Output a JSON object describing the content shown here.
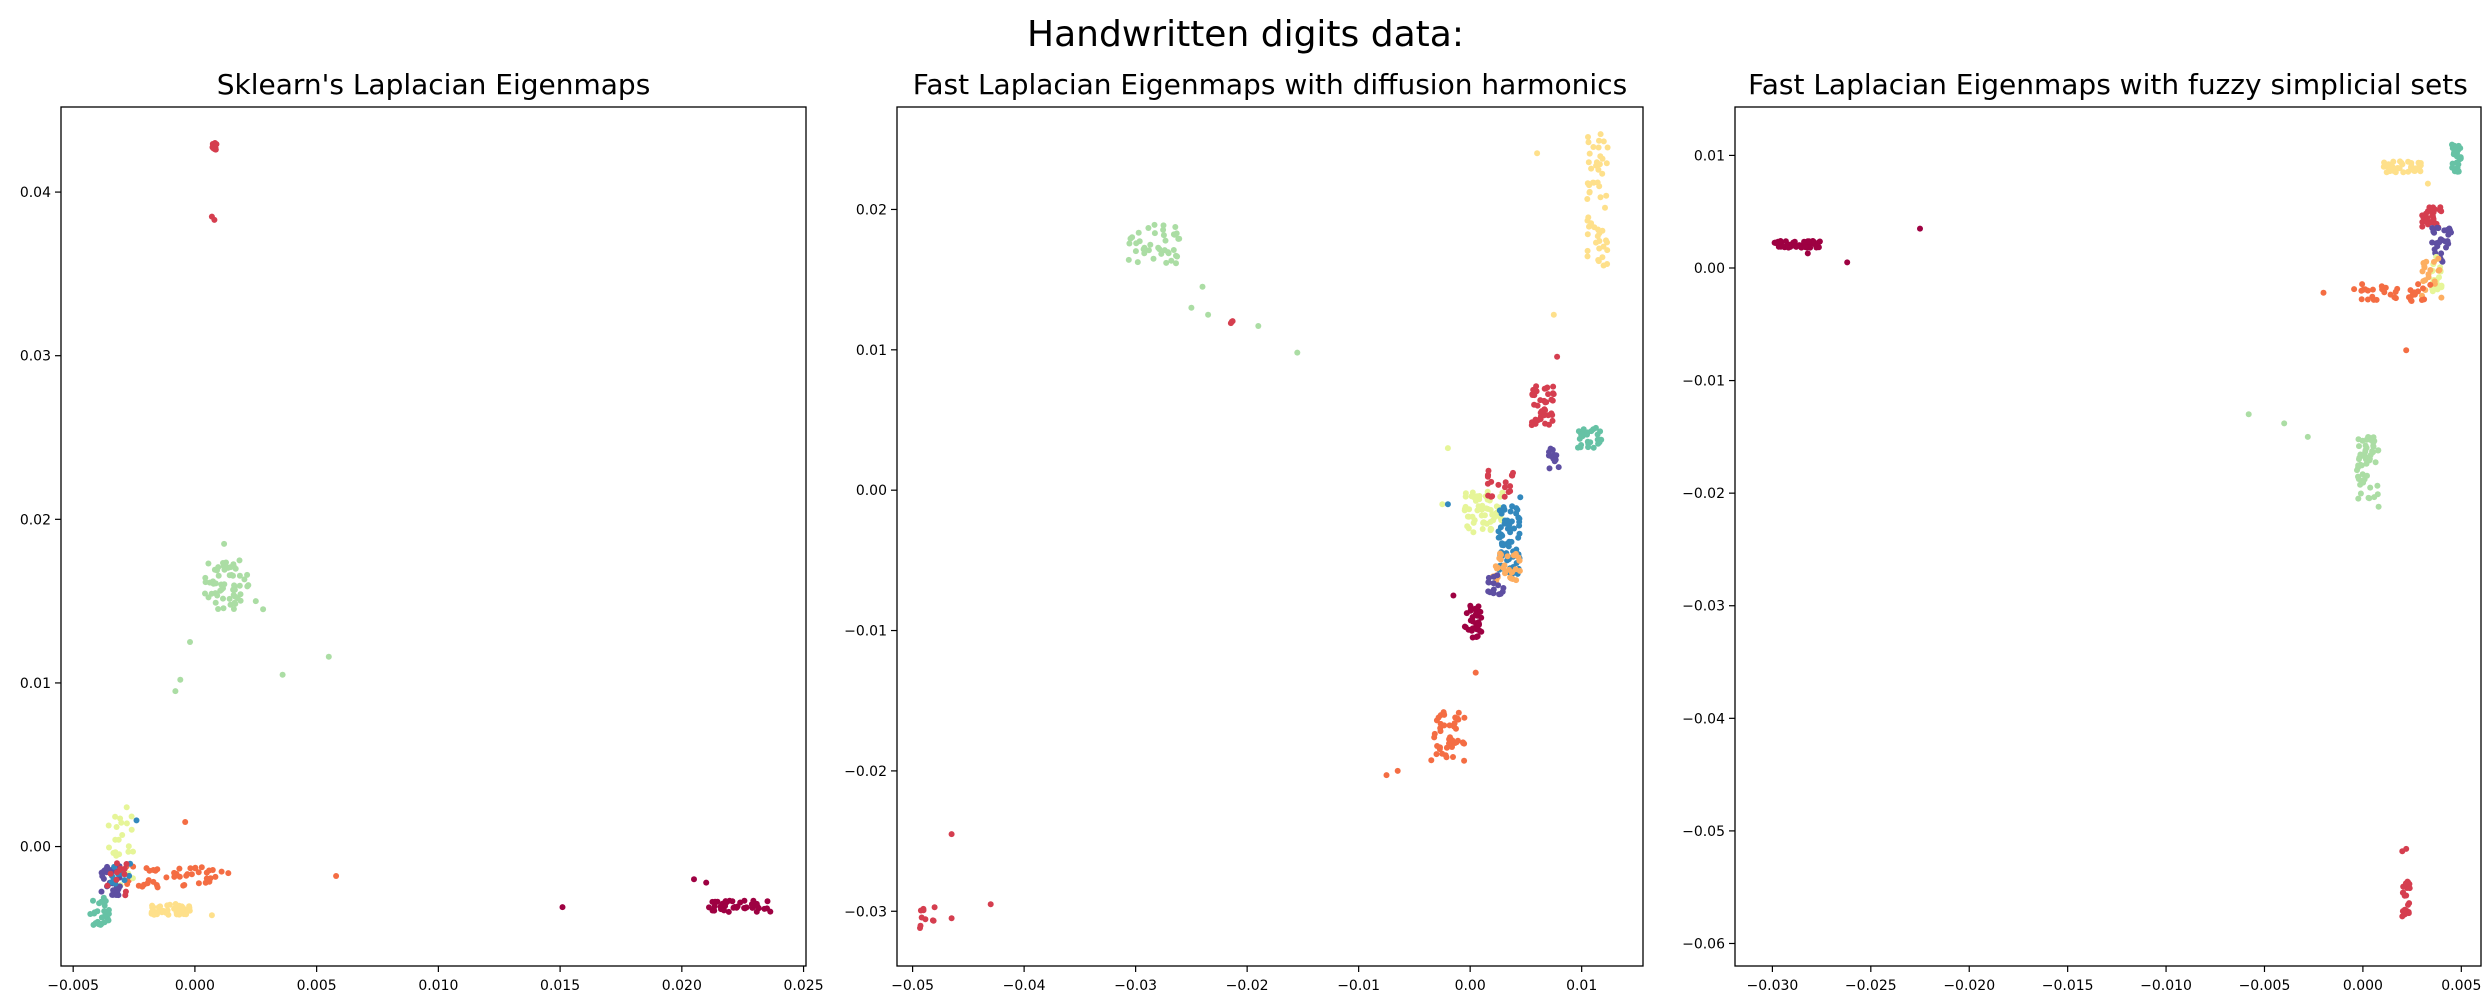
{
  "suptitle": "Handwritten digits data:",
  "colors": {
    "0": "#9e0142",
    "1": "#d53e4f",
    "2": "#f46d43",
    "3": "#fdae61",
    "4": "#fee08b",
    "5": "#e6f598",
    "6": "#abdda4",
    "7": "#66c2a5",
    "8": "#3288bd",
    "9": "#5e4fa2"
  },
  "chart_data": [
    {
      "type": "scatter",
      "title": "Sklearn's Laplacian Eigenmaps",
      "xlabel": "",
      "ylabel": "",
      "xlim": [
        -0.0055,
        0.0251
      ],
      "ylim": [
        -0.0073,
        0.0452
      ],
      "xticks": [
        -0.005,
        0.0,
        0.005,
        0.01,
        0.015,
        0.02,
        0.025
      ],
      "xtick_labels": [
        "−0.005",
        "0.000",
        "0.005",
        "0.010",
        "0.015",
        "0.020",
        "0.025"
      ],
      "yticks": [
        0.0,
        0.01,
        0.02,
        0.03,
        0.04
      ],
      "ytick_labels": [
        "0.00",
        "0.01",
        "0.02",
        "0.03",
        "0.04"
      ],
      "clusters": [
        {
          "c": "1",
          "n": 14,
          "x": [
            0.0007,
            0.0009
          ],
          "y": [
            0.0425,
            0.043
          ],
          "pts": [
            [
              0.0007,
              0.0385
            ],
            [
              0.0008,
              0.0383
            ]
          ]
        },
        {
          "c": "6",
          "n": 60,
          "x": [
            0.0004,
            0.0022
          ],
          "y": [
            0.0145,
            0.0175
          ],
          "pts": [
            [
              0.0012,
              0.0185
            ],
            [
              0.0025,
              0.015
            ],
            [
              0.0028,
              0.0145
            ],
            [
              -0.0002,
              0.0125
            ],
            [
              -0.0006,
              0.0102
            ],
            [
              -0.0008,
              0.0095
            ],
            [
              0.0036,
              0.0105
            ],
            [
              0.0055,
              0.0116
            ]
          ]
        },
        {
          "c": "0",
          "n": 40,
          "x": [
            0.021,
            0.0237
          ],
          "y": [
            -0.004,
            -0.0033
          ],
          "pts": [
            [
              0.0205,
              -0.002
            ],
            [
              0.021,
              -0.0022
            ],
            [
              0.0151,
              -0.0037
            ]
          ]
        },
        {
          "c": "2",
          "n": 45,
          "x": [
            -0.003,
            0.0015
          ],
          "y": [
            -0.0025,
            -0.0012
          ],
          "pts": [
            [
              0.0058,
              -0.0018
            ],
            [
              -0.0004,
              0.0015
            ]
          ]
        },
        {
          "c": "4",
          "n": 40,
          "x": [
            -0.0018,
            -0.0002
          ],
          "y": [
            -0.0042,
            -0.0035
          ],
          "pts": [
            [
              0.0007,
              -0.0042
            ]
          ]
        },
        {
          "c": "5",
          "n": 25,
          "x": [
            -0.0037,
            -0.0025
          ],
          "y": [
            -0.0025,
            0.002
          ],
          "pts": [
            [
              -0.0028,
              0.0024
            ]
          ]
        },
        {
          "c": "7",
          "n": 25,
          "x": [
            -0.0043,
            -0.0035
          ],
          "y": [
            -0.0048,
            -0.003
          ],
          "pts": []
        },
        {
          "c": "9",
          "n": 30,
          "x": [
            -0.0039,
            -0.003
          ],
          "y": [
            -0.003,
            -0.0012
          ],
          "pts": []
        },
        {
          "c": "8",
          "n": 10,
          "x": [
            -0.0036,
            -0.0026
          ],
          "y": [
            -0.0025,
            -0.0005
          ],
          "pts": [
            [
              -0.0024,
              0.0016
            ]
          ]
        },
        {
          "c": "1",
          "n": 12,
          "x": [
            -0.0036,
            -0.0028
          ],
          "y": [
            -0.003,
            -0.001
          ],
          "pts": []
        }
      ]
    },
    {
      "type": "scatter",
      "title": "Fast Laplacian Eigenmaps with diffusion harmonics",
      "xlabel": "",
      "ylabel": "",
      "xlim": [
        -0.0514,
        0.0155
      ],
      "ylim": [
        -0.0339,
        0.0273
      ],
      "xticks": [
        -0.05,
        -0.04,
        -0.03,
        -0.02,
        -0.01,
        0.0,
        0.01
      ],
      "xtick_labels": [
        "−0.05",
        "−0.04",
        "−0.03",
        "−0.02",
        "−0.01",
        "0.00",
        "0.01"
      ],
      "yticks": [
        -0.03,
        -0.02,
        -0.01,
        0.0,
        0.01,
        0.02
      ],
      "ytick_labels": [
        "−0.03",
        "−0.02",
        "−0.01",
        "0.00",
        "0.01",
        "0.02"
      ],
      "clusters": [
        {
          "c": "6",
          "n": 40,
          "x": [
            -0.031,
            -0.026
          ],
          "y": [
            0.016,
            0.019
          ],
          "pts": [
            [
              -0.024,
              0.0145
            ],
            [
              -0.0235,
              0.0125
            ],
            [
              -0.019,
              0.0117
            ],
            [
              -0.0155,
              0.0098
            ],
            [
              -0.025,
              0.013
            ]
          ]
        },
        {
          "c": "1",
          "n": 3,
          "x": [
            -0.0215,
            -0.0213
          ],
          "y": [
            0.0119,
            0.0121
          ],
          "pts": []
        },
        {
          "c": "4",
          "n": 55,
          "x": [
            0.0105,
            0.0125
          ],
          "y": [
            0.016,
            0.026
          ],
          "pts": [
            [
              0.0075,
              0.0125
            ],
            [
              0.006,
              0.024
            ]
          ]
        },
        {
          "c": "7",
          "n": 30,
          "x": [
            0.0095,
            0.0118
          ],
          "y": [
            0.003,
            0.0045
          ],
          "pts": []
        },
        {
          "c": "1",
          "n": 40,
          "x": [
            0.0055,
            0.0075
          ],
          "y": [
            0.0045,
            0.0075
          ],
          "pts": [
            [
              0.0078,
              0.0095
            ]
          ]
        },
        {
          "c": "9",
          "n": 15,
          "x": [
            0.007,
            0.008
          ],
          "y": [
            0.0015,
            0.003
          ],
          "pts": []
        },
        {
          "c": "5",
          "n": 60,
          "x": [
            -0.0005,
            0.003
          ],
          "y": [
            -0.003,
            0.0
          ],
          "pts": [
            [
              -0.002,
              0.003
            ],
            [
              -0.0025,
              -0.001
            ]
          ]
        },
        {
          "c": "8",
          "n": 70,
          "x": [
            0.0025,
            0.0045
          ],
          "y": [
            -0.006,
            -0.001
          ],
          "pts": [
            [
              -0.002,
              -0.001
            ],
            [
              0.0045,
              -0.0005
            ]
          ]
        },
        {
          "c": "1",
          "n": 20,
          "x": [
            0.0015,
            0.004
          ],
          "y": [
            -0.0005,
            0.0015
          ],
          "pts": []
        },
        {
          "c": "3",
          "n": 30,
          "x": [
            0.002,
            0.0045
          ],
          "y": [
            -0.0065,
            -0.0045
          ],
          "pts": []
        },
        {
          "c": "9",
          "n": 15,
          "x": [
            0.0015,
            0.003
          ],
          "y": [
            -0.0075,
            -0.006
          ],
          "pts": []
        },
        {
          "c": "0",
          "n": 35,
          "x": [
            -0.0005,
            0.001
          ],
          "y": [
            -0.0105,
            -0.008
          ],
          "pts": [
            [
              -0.0015,
              -0.0075
            ]
          ]
        },
        {
          "c": "2",
          "n": 45,
          "x": [
            -0.0035,
            -0.0005
          ],
          "y": [
            -0.0193,
            -0.0155
          ],
          "pts": [
            [
              -0.0065,
              -0.02
            ],
            [
              -0.0075,
              -0.0203
            ],
            [
              0.0005,
              -0.013
            ]
          ]
        },
        {
          "c": "1",
          "n": 10,
          "x": [
            -0.0495,
            -0.048
          ],
          "y": [
            -0.0312,
            -0.0295
          ],
          "pts": [
            [
              -0.0465,
              -0.0245
            ],
            [
              -0.043,
              -0.0295
            ],
            [
              -0.0465,
              -0.0305
            ]
          ]
        }
      ]
    },
    {
      "type": "scatter",
      "title": "Fast Laplacian Eigenmaps with fuzzy simplicial sets",
      "xlabel": "",
      "ylabel": "",
      "xlim": [
        -0.0319,
        0.006
      ],
      "ylim": [
        -0.062,
        0.0143
      ],
      "xticks": [
        -0.03,
        -0.025,
        -0.02,
        -0.015,
        -0.01,
        -0.005,
        0.0,
        0.005
      ],
      "xtick_labels": [
        "−0.030",
        "−0.025",
        "−0.020",
        "−0.015",
        "−0.010",
        "−0.005",
        "0.000",
        "0.005"
      ],
      "yticks": [
        -0.06,
        -0.05,
        -0.04,
        -0.03,
        -0.02,
        -0.01,
        0.0,
        0.01
      ],
      "ytick_labels": [
        "−0.06",
        "−0.05",
        "−0.04",
        "−0.03",
        "−0.02",
        "−0.01",
        "0.00",
        "0.01"
      ],
      "clusters": [
        {
          "c": "0",
          "n": 50,
          "x": [
            -0.03,
            -0.0275
          ],
          "y": [
            0.0018,
            0.0024
          ],
          "pts": [
            [
              -0.0262,
              0.0005
            ],
            [
              -0.0225,
              0.0035
            ],
            [
              -0.0282,
              0.0013
            ]
          ]
        },
        {
          "c": "4",
          "n": 35,
          "x": [
            0.001,
            0.003
          ],
          "y": [
            0.0085,
            0.0095
          ],
          "pts": [
            [
              0.0033,
              0.0075
            ]
          ]
        },
        {
          "c": "7",
          "n": 30,
          "x": [
            0.0045,
            0.005
          ],
          "y": [
            0.0085,
            0.011
          ],
          "pts": []
        },
        {
          "c": "1",
          "n": 30,
          "x": [
            0.003,
            0.004
          ],
          "y": [
            0.0035,
            0.0055
          ],
          "pts": []
        },
        {
          "c": "9",
          "n": 30,
          "x": [
            0.0035,
            0.0045
          ],
          "y": [
            0.0005,
            0.004
          ],
          "pts": []
        },
        {
          "c": "5",
          "n": 20,
          "x": [
            0.0035,
            0.004
          ],
          "y": [
            -0.0025,
            0.001
          ],
          "pts": []
        },
        {
          "c": "3",
          "n": 20,
          "x": [
            0.003,
            0.004
          ],
          "y": [
            -0.003,
            0.001
          ],
          "pts": []
        },
        {
          "c": "2",
          "n": 35,
          "x": [
            -0.0005,
            0.0035
          ],
          "y": [
            -0.003,
            -0.0012
          ],
          "pts": [
            [
              -0.002,
              -0.0022
            ],
            [
              0.0022,
              -0.0073
            ]
          ]
        },
        {
          "c": "6",
          "n": 55,
          "x": [
            -0.0003,
            0.0008
          ],
          "y": [
            -0.0205,
            -0.015
          ],
          "pts": [
            [
              -0.0058,
              -0.013
            ],
            [
              -0.004,
              -0.0138
            ],
            [
              -0.0028,
              -0.015
            ],
            [
              0.0008,
              -0.0212
            ]
          ]
        },
        {
          "c": "1",
          "n": 22,
          "x": [
            0.002,
            0.0024
          ],
          "y": [
            -0.0578,
            -0.0545
          ],
          "pts": [
            [
              0.0022,
              -0.0516
            ],
            [
              0.002,
              -0.0518
            ]
          ]
        }
      ]
    }
  ]
}
